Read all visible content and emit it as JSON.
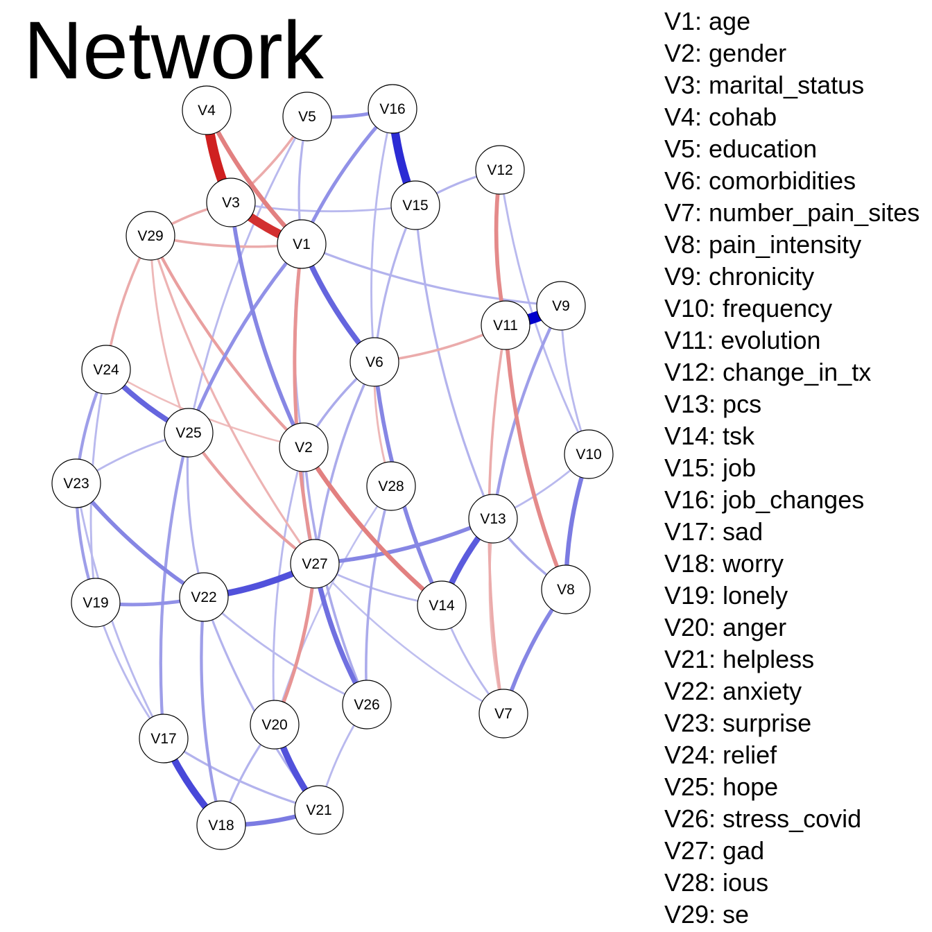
{
  "title": "Network",
  "legend": [
    "V1: age",
    "V2: gender",
    "V3: marital_status",
    "V4: cohab",
    "V5: education",
    "V6: comorbidities",
    "V7: number_pain_sites",
    "V8: pain_intensity",
    "V9: chronicity",
    "V10: frequency",
    "V11: evolution",
    "V12: change_in_tx",
    "V13: pcs",
    "V14: tsk",
    "V15: job",
    "V16: job_changes",
    "V17: sad",
    "V18: worry",
    "V19: lonely",
    "V20: anger",
    "V21: helpless",
    "V22: anxiety",
    "V23: surprise",
    "V24: relief",
    "V25: hope",
    "V26: stress_covid",
    "V27: gad",
    "V28: ious",
    "V29: se"
  ],
  "colors": {
    "positive": "#0000cc",
    "negative": "#cc1111"
  },
  "nodes": [
    "V1",
    "V2",
    "V3",
    "V4",
    "V5",
    "V6",
    "V7",
    "V8",
    "V9",
    "V10",
    "V11",
    "V12",
    "V13",
    "V14",
    "V15",
    "V16",
    "V17",
    "V18",
    "V19",
    "V20",
    "V21",
    "V22",
    "V23",
    "V24",
    "V25",
    "V26",
    "V27",
    "V28",
    "V29"
  ],
  "edges": [
    {
      "from": "V4",
      "to": "V3",
      "weight": -0.9
    },
    {
      "from": "V3",
      "to": "V1",
      "weight": -0.8
    },
    {
      "from": "V4",
      "to": "V1",
      "weight": -0.35
    },
    {
      "from": "V16",
      "to": "V15",
      "weight": 0.75
    },
    {
      "from": "V11",
      "to": "V9",
      "weight": 1.0
    },
    {
      "from": "V22",
      "to": "V27",
      "weight": 0.55
    },
    {
      "from": "V17",
      "to": "V18",
      "weight": 0.6
    },
    {
      "from": "V20",
      "to": "V21",
      "weight": 0.55
    },
    {
      "from": "V13",
      "to": "V14",
      "weight": 0.5
    },
    {
      "from": "V1",
      "to": "V6",
      "weight": 0.45
    },
    {
      "from": "V24",
      "to": "V25",
      "weight": 0.45
    },
    {
      "from": "V2",
      "to": "V14",
      "weight": -0.35
    },
    {
      "from": "V12",
      "to": "V11",
      "weight": -0.3
    },
    {
      "from": "V11",
      "to": "V8",
      "weight": -0.3
    },
    {
      "from": "V27",
      "to": "V26",
      "weight": 0.4
    },
    {
      "from": "V18",
      "to": "V21",
      "weight": 0.35
    },
    {
      "from": "V10",
      "to": "V8",
      "weight": 0.35
    },
    {
      "from": "V8",
      "to": "V7",
      "weight": 0.3
    },
    {
      "from": "V6",
      "to": "V14",
      "weight": 0.3
    },
    {
      "from": "V27",
      "to": "V13",
      "weight": 0.3
    },
    {
      "from": "V3",
      "to": "V2",
      "weight": 0.3
    },
    {
      "from": "V23",
      "to": "V22",
      "weight": 0.3
    },
    {
      "from": "V5",
      "to": "V16",
      "weight": 0.25
    },
    {
      "from": "V16",
      "to": "V1",
      "weight": 0.25
    },
    {
      "from": "V1",
      "to": "V25",
      "weight": 0.25
    },
    {
      "from": "V19",
      "to": "V22",
      "weight": 0.25
    },
    {
      "from": "V20",
      "to": "V27",
      "weight": -0.25
    },
    {
      "from": "V1",
      "to": "V27",
      "weight": -0.25
    },
    {
      "from": "V29",
      "to": "V2",
      "weight": -0.2
    },
    {
      "from": "V25",
      "to": "V27",
      "weight": -0.2
    },
    {
      "from": "V9",
      "to": "V13",
      "weight": 0.2
    },
    {
      "from": "V24",
      "to": "V23",
      "weight": 0.2
    },
    {
      "from": "V23",
      "to": "V19",
      "weight": 0.2
    },
    {
      "from": "V25",
      "to": "V17",
      "weight": 0.2
    },
    {
      "from": "V22",
      "to": "V18",
      "weight": 0.2
    },
    {
      "from": "V29",
      "to": "V24",
      "weight": -0.15
    },
    {
      "from": "V3",
      "to": "V29",
      "weight": -0.15
    },
    {
      "from": "V3",
      "to": "V5",
      "weight": -0.15
    },
    {
      "from": "V29",
      "to": "V1",
      "weight": -0.15
    },
    {
      "from": "V6",
      "to": "V11",
      "weight": -0.15
    },
    {
      "from": "V11",
      "to": "V7",
      "weight": -0.15
    },
    {
      "from": "V2",
      "to": "V26",
      "weight": 0.15
    },
    {
      "from": "V28",
      "to": "V26",
      "weight": 0.15
    },
    {
      "from": "V6",
      "to": "V2",
      "weight": 0.15
    },
    {
      "from": "V13",
      "to": "V8",
      "weight": 0.15
    },
    {
      "from": "V12",
      "to": "V15",
      "weight": 0.12
    },
    {
      "from": "V5",
      "to": "V1",
      "weight": 0.12
    },
    {
      "from": "V15",
      "to": "V13",
      "weight": 0.12
    },
    {
      "from": "V1",
      "to": "V9",
      "weight": 0.12
    },
    {
      "from": "V25",
      "to": "V22",
      "weight": 0.12
    },
    {
      "from": "V17",
      "to": "V21",
      "weight": 0.12
    },
    {
      "from": "V22",
      "to": "V21",
      "weight": 0.12
    },
    {
      "from": "V20",
      "to": "V18",
      "weight": 0.12
    },
    {
      "from": "V26",
      "to": "V21",
      "weight": 0.1
    },
    {
      "from": "V27",
      "to": "V14",
      "weight": 0.1
    },
    {
      "from": "V6",
      "to": "V28",
      "weight": -0.1
    },
    {
      "from": "V29",
      "to": "V27",
      "weight": -0.12
    },
    {
      "from": "V29",
      "to": "V25",
      "weight": -0.1
    },
    {
      "from": "V9",
      "to": "V10",
      "weight": 0.1
    },
    {
      "from": "V12",
      "to": "V10",
      "weight": 0.1
    },
    {
      "from": "V24",
      "to": "V19",
      "weight": 0.1
    },
    {
      "from": "V23",
      "to": "V17",
      "weight": 0.1
    },
    {
      "from": "V2",
      "to": "V27",
      "weight": 0.12
    },
    {
      "from": "V6",
      "to": "V27",
      "weight": 0.15
    },
    {
      "from": "V15",
      "to": "V6",
      "weight": 0.12
    },
    {
      "from": "V16",
      "to": "V6",
      "weight": 0.1
    },
    {
      "from": "V14",
      "to": "V7",
      "weight": 0.1
    },
    {
      "from": "V13",
      "to": "V7",
      "weight": -0.1
    },
    {
      "from": "V27",
      "to": "V7",
      "weight": 0.08
    },
    {
      "from": "V22",
      "to": "V26",
      "weight": 0.1
    },
    {
      "from": "V19",
      "to": "V17",
      "weight": 0.1
    },
    {
      "from": "V25",
      "to": "V23",
      "weight": 0.1
    },
    {
      "from": "V2",
      "to": "V20",
      "weight": 0.1
    },
    {
      "from": "V28",
      "to": "V20",
      "weight": 0.08
    },
    {
      "from": "V13",
      "to": "V10",
      "weight": 0.1
    },
    {
      "from": "V3",
      "to": "V15",
      "weight": 0.1
    },
    {
      "from": "V5",
      "to": "V25",
      "weight": 0.1
    },
    {
      "from": "V24",
      "to": "V2",
      "weight": -0.08
    },
    {
      "from": "V1",
      "to": "V2",
      "weight": 0.1
    }
  ]
}
